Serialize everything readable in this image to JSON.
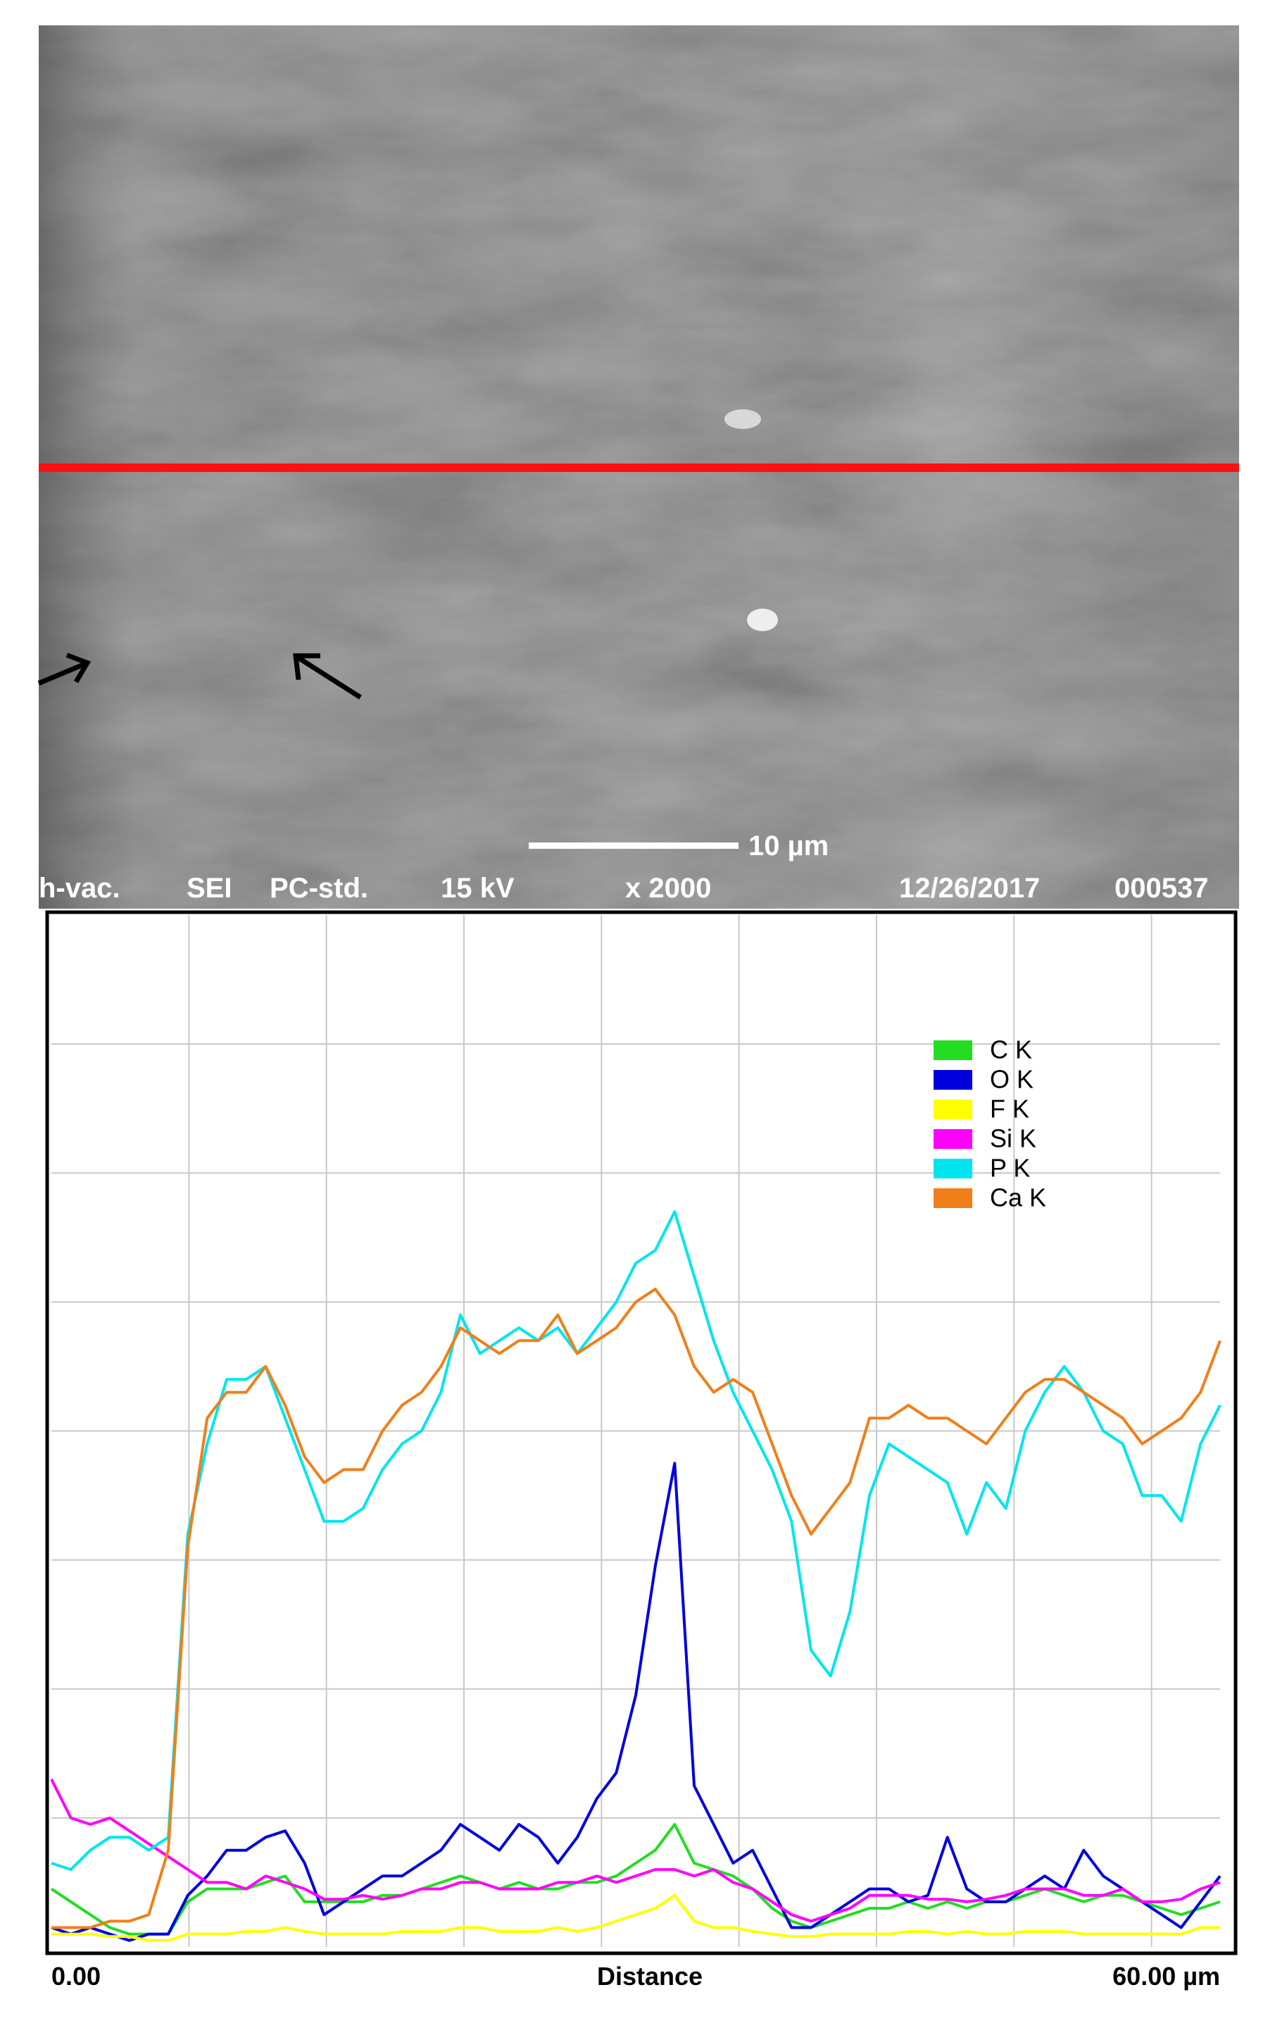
{
  "image": {
    "scale_bar": "10 µm",
    "info": [
      "h-vac.",
      "SEI",
      "PC-std.",
      "15 kV",
      "x 2000",
      "12/26/2017",
      "000537"
    ]
  },
  "chart_data": {
    "type": "line",
    "x_label": "Distance",
    "xlim": [
      0,
      60
    ],
    "ylim": [
      0,
      8
    ],
    "xticks": [
      {
        "value": 0,
        "label": "0.00"
      },
      {
        "value": 60,
        "label": "60.00 µm"
      }
    ],
    "xgrid": [
      7.06,
      14.12,
      21.18,
      28.24,
      35.3,
      42.36,
      49.42,
      56.48
    ],
    "ygrid": [
      1,
      2,
      3,
      4,
      5,
      6,
      7
    ],
    "grid": true,
    "legend": "upper right",
    "x": [
      0,
      1,
      2,
      3,
      4,
      5,
      6,
      7,
      8,
      9,
      10,
      11,
      12,
      13,
      14,
      15,
      16,
      17,
      18,
      19,
      20,
      21,
      22,
      23,
      24,
      25,
      26,
      27,
      28,
      29,
      30,
      31,
      32,
      33,
      34,
      35,
      36,
      37,
      38,
      39,
      40,
      41,
      42,
      43,
      44,
      45,
      46,
      47,
      48,
      49,
      50,
      51,
      52,
      53,
      54,
      55,
      56,
      57,
      58,
      59,
      60
    ],
    "series": [
      {
        "name": "C K",
        "color": "#22dd22",
        "values": [
          0.45,
          0.35,
          0.25,
          0.15,
          0.1,
          0.1,
          0.1,
          0.35,
          0.45,
          0.45,
          0.45,
          0.5,
          0.55,
          0.35,
          0.35,
          0.35,
          0.35,
          0.4,
          0.4,
          0.45,
          0.5,
          0.55,
          0.5,
          0.45,
          0.5,
          0.45,
          0.45,
          0.5,
          0.5,
          0.55,
          0.65,
          0.75,
          0.95,
          0.65,
          0.6,
          0.55,
          0.45,
          0.3,
          0.2,
          0.15,
          0.2,
          0.25,
          0.3,
          0.3,
          0.35,
          0.3,
          0.35,
          0.3,
          0.35,
          0.35,
          0.4,
          0.45,
          0.4,
          0.35,
          0.4,
          0.4,
          0.35,
          0.3,
          0.25,
          0.3,
          0.35
        ]
      },
      {
        "name": "O K",
        "color": "#0000dd",
        "values": [
          0.15,
          0.1,
          0.15,
          0.1,
          0.05,
          0.1,
          0.1,
          0.4,
          0.55,
          0.75,
          0.75,
          0.85,
          0.9,
          0.65,
          0.25,
          0.35,
          0.45,
          0.55,
          0.55,
          0.65,
          0.75,
          0.95,
          0.85,
          0.75,
          0.95,
          0.85,
          0.65,
          0.85,
          1.15,
          1.35,
          1.95,
          2.95,
          3.75,
          1.25,
          0.95,
          0.65,
          0.75,
          0.45,
          0.15,
          0.15,
          0.25,
          0.35,
          0.45,
          0.45,
          0.35,
          0.4,
          0.85,
          0.45,
          0.35,
          0.35,
          0.45,
          0.55,
          0.45,
          0.75,
          0.55,
          0.45,
          0.35,
          0.25,
          0.15,
          0.35,
          0.55
        ]
      },
      {
        "name": "F K",
        "color": "#ffff00",
        "values": [
          0.1,
          0.1,
          0.1,
          0.08,
          0.08,
          0.05,
          0.05,
          0.1,
          0.1,
          0.1,
          0.12,
          0.12,
          0.15,
          0.12,
          0.1,
          0.1,
          0.1,
          0.1,
          0.12,
          0.12,
          0.12,
          0.15,
          0.15,
          0.12,
          0.12,
          0.12,
          0.15,
          0.12,
          0.15,
          0.2,
          0.25,
          0.3,
          0.4,
          0.2,
          0.15,
          0.15,
          0.12,
          0.1,
          0.08,
          0.08,
          0.1,
          0.1,
          0.1,
          0.1,
          0.12,
          0.12,
          0.1,
          0.12,
          0.1,
          0.1,
          0.12,
          0.12,
          0.12,
          0.1,
          0.1,
          0.1,
          0.1,
          0.1,
          0.1,
          0.15,
          0.15
        ]
      },
      {
        "name": "Si K",
        "color": "#ff00ff",
        "values": [
          1.3,
          1.0,
          0.95,
          1.0,
          0.9,
          0.8,
          0.7,
          0.6,
          0.5,
          0.5,
          0.45,
          0.55,
          0.5,
          0.45,
          0.37,
          0.37,
          0.4,
          0.37,
          0.4,
          0.45,
          0.45,
          0.5,
          0.5,
          0.45,
          0.45,
          0.45,
          0.5,
          0.5,
          0.55,
          0.5,
          0.55,
          0.6,
          0.6,
          0.55,
          0.6,
          0.5,
          0.45,
          0.35,
          0.25,
          0.2,
          0.25,
          0.3,
          0.4,
          0.4,
          0.4,
          0.37,
          0.37,
          0.35,
          0.37,
          0.4,
          0.45,
          0.45,
          0.45,
          0.4,
          0.4,
          0.45,
          0.35,
          0.35,
          0.37,
          0.45,
          0.5
        ]
      },
      {
        "name": "P K",
        "color": "#00e5ee",
        "values": [
          0.65,
          0.6,
          0.75,
          0.85,
          0.85,
          0.75,
          0.85,
          3.2,
          3.9,
          4.4,
          4.4,
          4.5,
          4.1,
          3.7,
          3.3,
          3.3,
          3.4,
          3.7,
          3.9,
          4.0,
          4.3,
          4.9,
          4.6,
          4.7,
          4.8,
          4.7,
          4.8,
          4.6,
          4.8,
          5.0,
          5.3,
          5.4,
          5.7,
          5.2,
          4.7,
          4.3,
          4.0,
          3.7,
          3.3,
          2.3,
          2.1,
          2.6,
          3.5,
          3.9,
          3.8,
          3.7,
          3.6,
          3.2,
          3.6,
          3.4,
          4.0,
          4.3,
          4.5,
          4.3,
          4.0,
          3.9,
          3.5,
          3.5,
          3.3,
          3.9,
          4.2
        ]
      },
      {
        "name": "Ca K",
        "color": "#f07f1a",
        "values": [
          0.15,
          0.15,
          0.15,
          0.2,
          0.2,
          0.25,
          0.75,
          3.1,
          4.1,
          4.3,
          4.3,
          4.5,
          4.2,
          3.8,
          3.6,
          3.7,
          3.7,
          4.0,
          4.2,
          4.3,
          4.5,
          4.8,
          4.7,
          4.6,
          4.7,
          4.7,
          4.9,
          4.6,
          4.7,
          4.8,
          5.0,
          5.1,
          4.9,
          4.5,
          4.3,
          4.4,
          4.3,
          3.9,
          3.5,
          3.2,
          3.4,
          3.6,
          4.1,
          4.1,
          4.2,
          4.1,
          4.1,
          4.0,
          3.9,
          4.1,
          4.3,
          4.4,
          4.4,
          4.3,
          4.2,
          4.1,
          3.9,
          4.0,
          4.1,
          4.3,
          4.7
        ]
      }
    ]
  }
}
